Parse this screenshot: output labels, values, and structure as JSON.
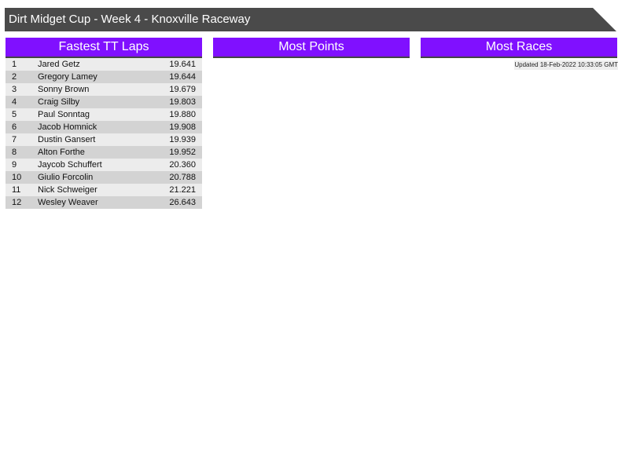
{
  "title": "Dirt Midget Cup - Week 4 - Knoxville Raceway",
  "panels": {
    "fastest": {
      "title": "Fastest TT Laps",
      "rows": [
        {
          "pos": "1",
          "name": "Jared Getz",
          "time": "19.641"
        },
        {
          "pos": "2",
          "name": "Gregory Lamey",
          "time": "19.644"
        },
        {
          "pos": "3",
          "name": "Sonny Brown",
          "time": "19.679"
        },
        {
          "pos": "4",
          "name": "Craig Silby",
          "time": "19.803"
        },
        {
          "pos": "5",
          "name": "Paul Sonntag",
          "time": "19.880"
        },
        {
          "pos": "6",
          "name": "Jacob Homnick",
          "time": "19.908"
        },
        {
          "pos": "7",
          "name": "Dustin Gansert",
          "time": "19.939"
        },
        {
          "pos": "8",
          "name": "Alton Forthe",
          "time": "19.952"
        },
        {
          "pos": "9",
          "name": "Jaycob Schuffert",
          "time": "20.360"
        },
        {
          "pos": "10",
          "name": "Giulio Forcolin",
          "time": "20.788"
        },
        {
          "pos": "11",
          "name": "Nick Schweiger",
          "time": "21.221"
        },
        {
          "pos": "12",
          "name": "Wesley Weaver",
          "time": "26.643"
        }
      ]
    },
    "points": {
      "title": "Most Points"
    },
    "races": {
      "title": "Most Races"
    }
  },
  "updated": "Updated 18-Feb-2022 10:33:05 GMT",
  "colors": {
    "header": "#8010ff",
    "titlebar": "#4a4a4a"
  }
}
